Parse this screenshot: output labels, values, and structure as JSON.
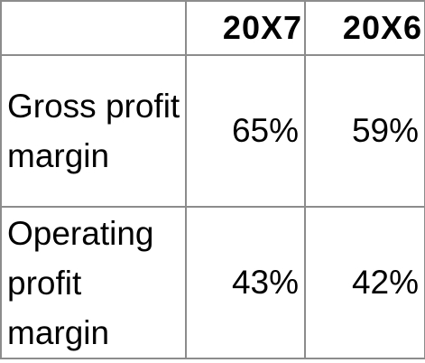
{
  "table": {
    "header": [
      "20X7",
      "20X6"
    ],
    "rows": [
      {
        "label": "Gross profit margin",
        "values": [
          "65%",
          "59%"
        ]
      },
      {
        "label": "Operating profit margin",
        "values": [
          "43%",
          "42%"
        ]
      }
    ]
  }
}
